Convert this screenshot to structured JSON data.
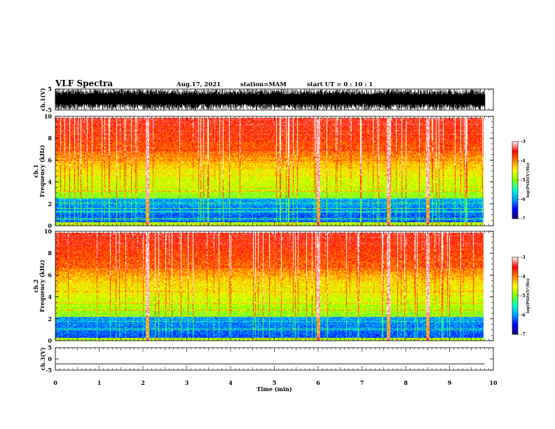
{
  "header": {
    "title": "VLF Spectra",
    "date": "Aug.17, 2021",
    "station": "station=MAM",
    "start_ut": "start  UT =  0 : 10 : 1"
  },
  "chart_data": [
    {
      "type": "line",
      "name": "ch1-waveform",
      "ylabel": "ch.1(V)",
      "ylim": [
        -5,
        5
      ],
      "yticks": [
        "5",
        "-5"
      ],
      "xlim": [
        0,
        10
      ],
      "note_values_visible": "dense broadband noise spanning approx -5 to 5 V over 0-9.8 min"
    },
    {
      "type": "heatmap",
      "name": "ch1-spectrogram",
      "ylabel": "ch.1\nFrequency  (kHz)",
      "ylabel_lines": [
        "ch.1",
        "Frequency  (kHz)"
      ],
      "ylim": [
        0,
        10
      ],
      "yticks": [
        "0",
        "2",
        "4",
        "6",
        "8",
        "10"
      ],
      "xlim": [
        0,
        10
      ],
      "data_extent_min": 9.8,
      "colorbar": {
        "label": "log(PSD)(V²/Hz)",
        "range": [
          -7,
          -3
        ],
        "ticks": [
          "-3",
          "-4",
          "-5",
          "-6",
          "-7"
        ]
      },
      "features": {
        "low_band_kHz": [
          0.3,
          2.5
        ],
        "strong_lines_kHz": [
          0.3,
          2.8
        ],
        "impulsive_min": [
          2.1,
          6.0,
          7.6,
          8.5
        ]
      }
    },
    {
      "type": "heatmap",
      "name": "ch2-spectrogram",
      "ylabel_lines": [
        "ch.2",
        "Frequency  (kHz)"
      ],
      "ylim": [
        0,
        10
      ],
      "yticks": [
        "0",
        "2",
        "4",
        "6",
        "8",
        "10"
      ],
      "xlim": [
        0,
        10
      ],
      "data_extent_min": 9.8,
      "colorbar": {
        "label": "log(PSD)(V²/Hz)",
        "range": [
          -7,
          -3
        ],
        "ticks": [
          "-3",
          "-4",
          "-5",
          "-6",
          "-7"
        ]
      },
      "features": {
        "low_band_kHz": [
          0.2,
          2.2
        ],
        "impulsive_min": [
          2.1,
          6.0,
          7.6,
          8.5
        ]
      }
    },
    {
      "type": "line",
      "name": "ch3-waveform",
      "ylabel": "ch.3(V)",
      "ylim": [
        -5,
        5
      ],
      "yticks": [
        "5",
        "0",
        "-5"
      ],
      "xlim": [
        0,
        10
      ],
      "xlabel": "Time  (min)",
      "xticks": [
        "0",
        "1",
        "2",
        "3",
        "4",
        "5",
        "6",
        "7",
        "8",
        "9",
        "10"
      ],
      "x": [
        0,
        9.8
      ],
      "y": [
        -2.2,
        -2.2
      ]
    }
  ],
  "colors": {
    "cmap": [
      "#1a0070",
      "#0000ff",
      "#00a0ff",
      "#00ffd0",
      "#7fff00",
      "#ffff00",
      "#ff8000",
      "#ff0000",
      "#ffffff"
    ]
  }
}
